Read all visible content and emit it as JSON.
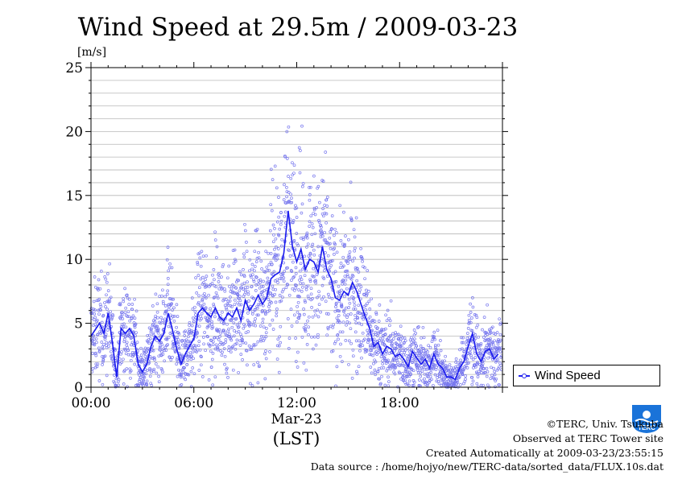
{
  "chart_data": {
    "type": "line",
    "title": "Wind Speed at 29.5m / 2009-03-23",
    "ylabel": "[m/s]",
    "xlabel": "(LST)",
    "date_label": "Mar-23",
    "ylim": [
      0,
      25
    ],
    "xlim": [
      "00:00",
      "24:00"
    ],
    "y_ticks": [
      0,
      5,
      10,
      15,
      20,
      25
    ],
    "x_ticks": [
      "00:00",
      "06:00",
      "12:00",
      "18:00"
    ],
    "grid": true,
    "legend_position": "right",
    "series": [
      {
        "name": "Wind Speed",
        "color": "#2222ee",
        "x_hours": [
          0,
          0.25,
          0.5,
          0.75,
          1,
          1.25,
          1.5,
          1.75,
          2,
          2.25,
          2.5,
          2.75,
          3,
          3.25,
          3.5,
          3.75,
          4,
          4.25,
          4.5,
          4.75,
          5,
          5.25,
          5.5,
          5.75,
          6,
          6.25,
          6.5,
          6.75,
          7,
          7.25,
          7.5,
          7.75,
          8,
          8.25,
          8.5,
          8.75,
          9,
          9.25,
          9.5,
          9.75,
          10,
          10.25,
          10.5,
          10.75,
          11,
          11.25,
          11.5,
          11.75,
          12,
          12.25,
          12.5,
          12.75,
          13,
          13.25,
          13.5,
          13.75,
          14,
          14.25,
          14.5,
          14.75,
          15,
          15.25,
          15.5,
          15.75,
          16,
          16.25,
          16.5,
          16.75,
          17,
          17.25,
          17.5,
          17.75,
          18,
          18.25,
          18.5,
          18.75,
          19,
          19.25,
          19.5,
          19.75,
          20,
          20.25,
          20.5,
          20.75,
          21,
          21.25,
          21.5,
          21.75,
          22,
          22.25,
          22.5,
          22.75,
          23,
          23.25,
          23.5,
          23.75
        ],
        "values": [
          4.0,
          4.5,
          5.0,
          4.2,
          5.8,
          3.5,
          0.8,
          4.6,
          4.2,
          4.6,
          4.0,
          1.8,
          1.2,
          1.8,
          3.2,
          4.0,
          3.6,
          4.2,
          5.8,
          4.5,
          3.0,
          1.8,
          2.6,
          3.2,
          3.8,
          5.8,
          6.2,
          5.8,
          5.5,
          6.2,
          5.5,
          5.2,
          5.8,
          5.5,
          6.2,
          5.2,
          6.8,
          6.0,
          6.5,
          7.2,
          6.5,
          7.0,
          8.5,
          8.8,
          9.0,
          10.5,
          13.8,
          11.0,
          9.8,
          10.8,
          9.2,
          10.0,
          9.8,
          9.0,
          11.0,
          9.2,
          8.5,
          7.0,
          6.8,
          7.5,
          7.2,
          8.2,
          7.5,
          6.5,
          5.5,
          4.6,
          3.2,
          3.5,
          2.6,
          3.2,
          3.0,
          2.4,
          2.6,
          2.2,
          1.6,
          2.8,
          2.3,
          1.8,
          2.2,
          1.5,
          2.6,
          1.8,
          1.5,
          0.8,
          0.8,
          0.6,
          1.5,
          2.0,
          3.2,
          4.2,
          2.6,
          2.0,
          2.8,
          3.0,
          2.2,
          2.6
        ]
      }
    ]
  },
  "credits": {
    "copyright": "©TERC, Univ. Tsukuba",
    "observed": "Observed at TERC Tower site",
    "created": "Created Automatically at 2009-03-23/23:55:15",
    "source": "Data source : /home/hojyo/new/TERC-data/sorted_data/FLUX.10s.dat"
  },
  "logo": {
    "text": "TERC",
    "color": "#0066cc"
  }
}
